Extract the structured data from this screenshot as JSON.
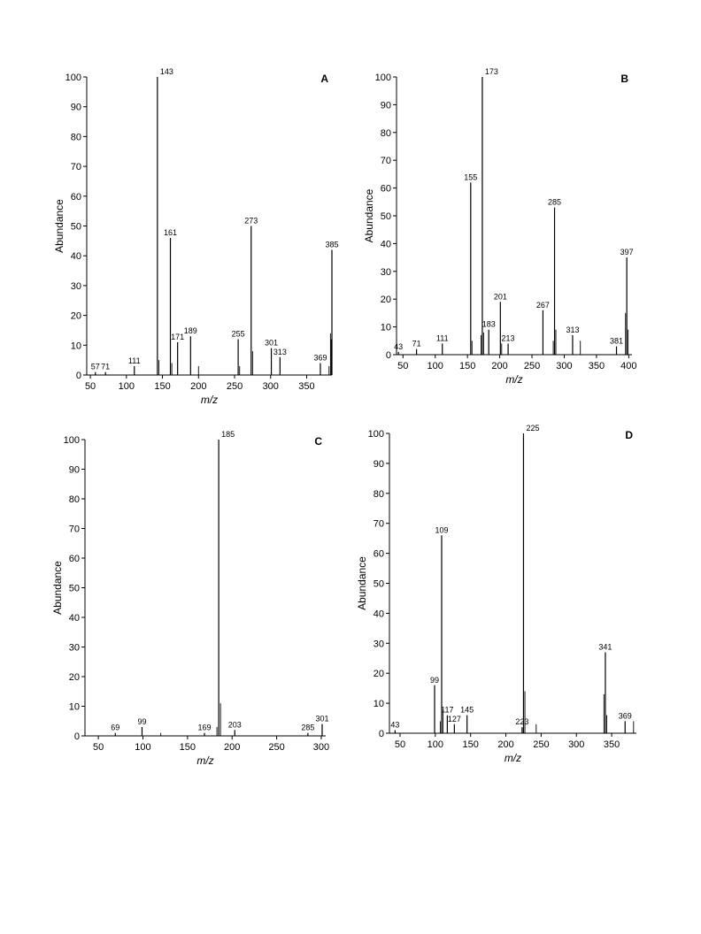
{
  "chart_data": [
    {
      "type": "bar",
      "panel_letter": "A",
      "xlabel": "m/z",
      "ylabel": "Abundance",
      "xlim": [
        45,
        385
      ],
      "ylim": [
        0,
        100
      ],
      "xticks": [
        50,
        100,
        150,
        200,
        250,
        300,
        350
      ],
      "yticks": [
        0,
        10,
        20,
        30,
        40,
        50,
        60,
        70,
        80,
        90,
        100
      ],
      "peaks": [
        {
          "x": 57,
          "y": 1,
          "label": "57"
        },
        {
          "x": 71,
          "y": 1,
          "label": "71"
        },
        {
          "x": 111,
          "y": 3,
          "label": "111"
        },
        {
          "x": 143,
          "y": 100,
          "label": "143"
        },
        {
          "x": 161,
          "y": 46,
          "label": "161"
        },
        {
          "x": 171,
          "y": 11,
          "label": "171"
        },
        {
          "x": 189,
          "y": 13,
          "label": "189"
        },
        {
          "x": 255,
          "y": 12,
          "label": "255"
        },
        {
          "x": 273,
          "y": 50,
          "label": "273"
        },
        {
          "x": 301,
          "y": 9,
          "label": "301"
        },
        {
          "x": 313,
          "y": 6,
          "label": "313"
        },
        {
          "x": 369,
          "y": 4,
          "label": "369"
        },
        {
          "x": 385,
          "y": 42,
          "label": "385"
        },
        {
          "x": 145,
          "y": 5
        },
        {
          "x": 163,
          "y": 4
        },
        {
          "x": 200,
          "y": 3
        },
        {
          "x": 257,
          "y": 3
        },
        {
          "x": 275,
          "y": 8
        },
        {
          "x": 383,
          "y": 14
        },
        {
          "x": 384,
          "y": 12
        },
        {
          "x": 381,
          "y": 3
        }
      ]
    },
    {
      "type": "bar",
      "panel_letter": "B",
      "xlabel": "m/z",
      "ylabel": "Abundance",
      "xlim": [
        40,
        405
      ],
      "ylim": [
        0,
        100
      ],
      "xticks": [
        50,
        100,
        150,
        200,
        250,
        300,
        350,
        400
      ],
      "yticks": [
        0,
        10,
        20,
        30,
        40,
        50,
        60,
        70,
        80,
        90,
        100
      ],
      "peaks": [
        {
          "x": 43,
          "y": 1,
          "label": "43"
        },
        {
          "x": 71,
          "y": 2,
          "label": "71"
        },
        {
          "x": 111,
          "y": 4,
          "label": "111"
        },
        {
          "x": 155,
          "y": 62,
          "label": "155"
        },
        {
          "x": 173,
          "y": 100,
          "label": "173"
        },
        {
          "x": 183,
          "y": 9,
          "label": "183"
        },
        {
          "x": 201,
          "y": 19,
          "label": "201"
        },
        {
          "x": 213,
          "y": 4,
          "label": "213"
        },
        {
          "x": 267,
          "y": 16,
          "label": "267"
        },
        {
          "x": 285,
          "y": 53,
          "label": "285"
        },
        {
          "x": 313,
          "y": 7,
          "label": "313"
        },
        {
          "x": 381,
          "y": 3,
          "label": "381"
        },
        {
          "x": 397,
          "y": 35,
          "label": "397"
        },
        {
          "x": 157,
          "y": 5
        },
        {
          "x": 171,
          "y": 7
        },
        {
          "x": 175,
          "y": 8
        },
        {
          "x": 203,
          "y": 4
        },
        {
          "x": 283,
          "y": 5
        },
        {
          "x": 287,
          "y": 9
        },
        {
          "x": 325,
          "y": 5
        },
        {
          "x": 395,
          "y": 15
        },
        {
          "x": 399,
          "y": 9
        }
      ]
    },
    {
      "type": "bar",
      "panel_letter": "C",
      "xlabel": "m/z",
      "ylabel": "Abundance",
      "xlim": [
        35,
        305
      ],
      "ylim": [
        0,
        100
      ],
      "xticks": [
        50,
        100,
        150,
        200,
        250,
        300
      ],
      "yticks": [
        0,
        10,
        20,
        30,
        40,
        50,
        60,
        70,
        80,
        90,
        100
      ],
      "peaks": [
        {
          "x": 69,
          "y": 1,
          "label": "69"
        },
        {
          "x": 99,
          "y": 3,
          "label": "99"
        },
        {
          "x": 169,
          "y": 1,
          "label": "169"
        },
        {
          "x": 185,
          "y": 100,
          "label": "185"
        },
        {
          "x": 203,
          "y": 2,
          "label": "203"
        },
        {
          "x": 285,
          "y": 1,
          "label": "285"
        },
        {
          "x": 301,
          "y": 4,
          "label": "301"
        },
        {
          "x": 183,
          "y": 3
        },
        {
          "x": 187,
          "y": 11
        },
        {
          "x": 120,
          "y": 1
        }
      ]
    },
    {
      "type": "bar",
      "panel_letter": "D",
      "xlabel": "m/z",
      "ylabel": "Abundance",
      "xlim": [
        35,
        385
      ],
      "ylim": [
        0,
        100
      ],
      "xticks": [
        50,
        100,
        150,
        200,
        250,
        300,
        350
      ],
      "yticks": [
        0,
        10,
        20,
        30,
        40,
        50,
        60,
        70,
        80,
        90,
        100
      ],
      "peaks": [
        {
          "x": 43,
          "y": 1,
          "label": "43"
        },
        {
          "x": 99,
          "y": 16,
          "label": "99"
        },
        {
          "x": 109,
          "y": 66,
          "label": "109"
        },
        {
          "x": 117,
          "y": 6,
          "label": "117"
        },
        {
          "x": 127,
          "y": 3,
          "label": "127"
        },
        {
          "x": 145,
          "y": 6,
          "label": "145"
        },
        {
          "x": 223,
          "y": 2,
          "label": "223"
        },
        {
          "x": 225,
          "y": 100,
          "label": "225"
        },
        {
          "x": 341,
          "y": 27,
          "label": "341"
        },
        {
          "x": 369,
          "y": 4,
          "label": "369"
        },
        {
          "x": 107,
          "y": 4
        },
        {
          "x": 111,
          "y": 8
        },
        {
          "x": 227,
          "y": 14
        },
        {
          "x": 243,
          "y": 3
        },
        {
          "x": 339,
          "y": 13
        },
        {
          "x": 343,
          "y": 6
        },
        {
          "x": 381,
          "y": 4
        }
      ]
    }
  ]
}
